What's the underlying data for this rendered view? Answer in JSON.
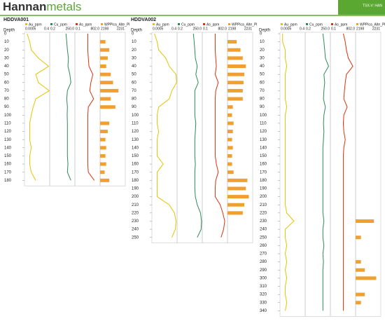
{
  "header": {
    "logo_main": "Hannan",
    "logo_accent": "metals",
    "ticker": "TSX-V: HAN"
  },
  "chart_data": [
    {
      "type": "well-log",
      "title": "HDDVA001",
      "y_label": "Depth",
      "ylim": [
        0,
        185
      ],
      "yticks": [
        0,
        10,
        20,
        30,
        40,
        50,
        60,
        70,
        80,
        90,
        100,
        110,
        120,
        130,
        140,
        150,
        160,
        170,
        180
      ],
      "y": [
        0,
        10,
        20,
        30,
        40,
        50,
        60,
        70,
        80,
        90,
        100,
        110,
        120,
        130,
        140,
        150,
        160,
        170,
        180
      ],
      "series": [
        {
          "name": "Au_ppm",
          "color": "#e6c400",
          "mark": "line",
          "log": true,
          "xlim": [
            0.0005,
            0.4
          ],
          "xticks": [
            0.0005,
            0.4
          ],
          "values": [
            0.001,
            0.002,
            0.003,
            0.02,
            0.3,
            0.01,
            0.02,
            0.35,
            0.01,
            0.005,
            0.003,
            0.002,
            0.002,
            0.002,
            0.003,
            0.002,
            0.002,
            0.003,
            0.01
          ]
        },
        {
          "name": "Cu_ppm",
          "color": "#2e8b57",
          "mark": "line",
          "log": true,
          "xlim": [
            0.2,
            250
          ],
          "xticks": [
            0.2,
            {
              "value": 250,
              "label": "250.0"
            }
          ],
          "values": [
            20,
            25,
            30,
            40,
            35,
            60,
            80,
            30,
            25,
            30,
            28,
            30,
            30,
            30,
            30,
            30,
            35,
            30,
            80
          ]
        },
        {
          "name": "As_ppm",
          "color": "#e03010",
          "mark": "line",
          "log": true,
          "xlim": [
            0.1,
            802
          ],
          "xticks": [
            0.1,
            {
              "value": 802,
              "label": "802.0"
            }
          ],
          "values": [
            10,
            10,
            10,
            12,
            15,
            60,
            30,
            20,
            80,
            12,
            10,
            10,
            10,
            10,
            10,
            10,
            10,
            12,
            100
          ]
        },
        {
          "name": "WPPlca_Alte_Pl",
          "color": "#f0a030",
          "mark": "bar",
          "log": false,
          "xlim": [
            2198,
            2231
          ],
          "xticks": [
            2198,
            2231
          ],
          "values": [
            null,
            2205,
            2210,
            2208,
            2206,
            2212,
            2215,
            2222,
            2212,
            2218,
            null,
            2210,
            2208,
            2205,
            2206,
            2205,
            2206,
            2204,
            2210
          ]
        }
      ]
    },
    {
      "type": "well-log",
      "title": "HDDVA002",
      "y_label": "Depth",
      "ylim": [
        0,
        255
      ],
      "yticks": [
        0,
        10,
        20,
        30,
        40,
        50,
        60,
        70,
        80,
        90,
        100,
        110,
        120,
        130,
        140,
        150,
        160,
        170,
        180,
        190,
        200,
        210,
        220,
        230,
        240,
        250
      ],
      "y": [
        0,
        10,
        20,
        30,
        40,
        50,
        60,
        70,
        80,
        90,
        100,
        110,
        120,
        130,
        140,
        150,
        160,
        170,
        180,
        190,
        200,
        210,
        220,
        230,
        240,
        250
      ],
      "series": [
        {
          "name": "Au_ppm",
          "color": "#e6c400",
          "mark": "line",
          "log": true,
          "xlim": [
            0.0005,
            0.4
          ],
          "xticks": [
            0.0005,
            0.4
          ],
          "values": [
            0.001,
            0.002,
            0.003,
            0.02,
            0.05,
            0.3,
            0.35,
            0.1,
            0.05,
            0.003,
            0.002,
            0.002,
            0.003,
            0.002,
            0.002,
            0.002,
            0.01,
            0.002,
            0.002,
            0.002,
            0.002,
            0.05,
            0.2,
            0.3,
            0.25,
            0.1
          ]
        },
        {
          "name": "Cu_ppm",
          "color": "#2e8b57",
          "mark": "line",
          "log": true,
          "xlim": [
            0.2,
            250
          ],
          "xticks": [
            0.2,
            {
              "value": 250,
              "label": "250.0"
            }
          ],
          "values": [
            20,
            25,
            30,
            35,
            60,
            40,
            80,
            30,
            30,
            30,
            30,
            40,
            35,
            30,
            30,
            30,
            35,
            30,
            30,
            30,
            35,
            60,
            150,
            200,
            180,
            60
          ]
        },
        {
          "name": "As_ppm",
          "color": "#e03010",
          "mark": "line",
          "log": true,
          "xlim": [
            0.1,
            802
          ],
          "xticks": [
            0.1,
            {
              "value": 802,
              "label": "802.0"
            }
          ],
          "values": [
            10,
            10,
            10,
            12,
            15,
            10,
            30,
            12,
            10,
            10,
            10,
            10,
            10,
            10,
            10,
            10,
            15,
            30,
            12,
            10,
            10,
            60,
            150,
            300,
            200,
            80
          ]
        },
        {
          "name": "WPPlca_Alte_Pl",
          "color": "#f0a030",
          "mark": "bar",
          "log": false,
          "xlim": [
            2198,
            2231
          ],
          "xticks": [
            2198,
            2231
          ],
          "values": [
            null,
            2210,
            2215,
            2218,
            2222,
            2220,
            2219,
            2218,
            2218,
            2205,
            2204,
            2206,
            2205,
            2204,
            2205,
            2204,
            2204,
            2206,
            2224,
            2222,
            2226,
            2220,
            2218,
            null,
            null,
            null
          ]
        }
      ]
    },
    {
      "type": "well-log",
      "y_label": "Depth",
      "ylim": [
        0,
        345
      ],
      "yticks": [
        0,
        10,
        20,
        30,
        40,
        50,
        60,
        70,
        80,
        90,
        100,
        110,
        120,
        130,
        140,
        150,
        160,
        170,
        180,
        190,
        200,
        210,
        220,
        230,
        240,
        250,
        260,
        270,
        280,
        290,
        300,
        310,
        320,
        330,
        340
      ],
      "y": [
        0,
        10,
        20,
        30,
        40,
        50,
        60,
        70,
        80,
        90,
        100,
        110,
        120,
        130,
        140,
        150,
        160,
        170,
        180,
        190,
        200,
        210,
        220,
        230,
        240,
        250,
        260,
        270,
        280,
        290,
        300,
        310,
        320,
        330,
        340
      ],
      "series": [
        {
          "name": "Au_ppm",
          "color": "#e6c400",
          "mark": "line",
          "log": true,
          "xlim": [
            0.0005,
            0.4
          ],
          "xticks": [
            0.0005,
            0.4
          ],
          "values": [
            0.001,
            0.001,
            0.002,
            0.002,
            0.003,
            0.002,
            0.002,
            0.002,
            0.002,
            0.003,
            0.002,
            0.002,
            0.002,
            0.002,
            0.002,
            0.002,
            0.002,
            0.002,
            0.002,
            0.002,
            0.002,
            0.002,
            0.003,
            0.02,
            0.002,
            0.002,
            0.003,
            0.002,
            0.003,
            0.002,
            0.003,
            0.002,
            0.002,
            0.003,
            0.002
          ]
        },
        {
          "name": "Cu_ppm",
          "color": "#2e8b57",
          "mark": "line",
          "log": true,
          "xlim": [
            0.2,
            250
          ],
          "xticks": [
            0.2,
            {
              "value": 250,
              "label": "250.0"
            }
          ],
          "values": [
            30,
            40,
            50,
            60,
            150,
            40,
            50,
            40,
            35,
            60,
            40,
            35,
            40,
            35,
            30,
            30,
            30,
            30,
            30,
            30,
            30,
            30,
            30,
            40,
            30,
            30,
            40,
            30,
            35,
            30,
            30,
            30,
            30,
            30,
            30
          ]
        },
        {
          "name": "As_ppm",
          "color": "#e03010",
          "mark": "line",
          "log": true,
          "xlim": [
            0.1,
            802
          ],
          "xticks": [
            0.1,
            {
              "value": 802,
              "label": "802.0"
            }
          ],
          "values": [
            10,
            20,
            30,
            60,
            300,
            30,
            20,
            15,
            12,
            40,
            12,
            10,
            12,
            20,
            12,
            10,
            10,
            10,
            10,
            10,
            10,
            10,
            10,
            10,
            10,
            10,
            10,
            10,
            10,
            10,
            10,
            10,
            10,
            10,
            10
          ]
        },
        {
          "name": "WPPlca_Alte_Pl",
          "color": "#f0a030",
          "mark": "bar",
          "log": false,
          "xlim": [
            2198,
            2231
          ],
          "xticks": [
            2198,
            2231
          ],
          "values": [
            null,
            null,
            null,
            null,
            null,
            null,
            null,
            null,
            null,
            null,
            null,
            null,
            null,
            null,
            null,
            null,
            null,
            null,
            null,
            null,
            null,
            null,
            null,
            2222,
            null,
            2205,
            null,
            null,
            2205,
            2210,
            2225,
            null,
            2210,
            2205,
            null
          ]
        }
      ]
    }
  ]
}
